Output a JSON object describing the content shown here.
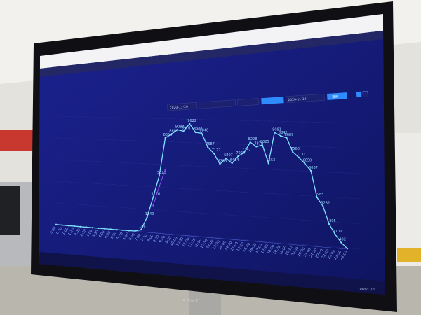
{
  "toolbar": {
    "start_date": "2020-11-20",
    "compare_date": "2020-11-19",
    "query_label": "查询"
  },
  "taskbar": {
    "clock_date": "2020/11/20"
  },
  "monitor_brand": "SONY",
  "colors": {
    "screen_bg": "#151a78",
    "series_main": "#7fe0ff",
    "series_compare": "#9a4dff",
    "button": "#2f8cff"
  },
  "chart_data": {
    "type": "line",
    "x": [
      "0:00",
      "0:30",
      "1:00",
      "1:30",
      "2:00",
      "2:30",
      "3:00",
      "3:30",
      "4:00",
      "4:30",
      "5:00",
      "5:30",
      "6:00",
      "6:30",
      "7:00",
      "7:30",
      "8:00",
      "8:30",
      "9:00",
      "9:30",
      "10:00",
      "10:30",
      "11:00",
      "11:30",
      "12:00",
      "12:30",
      "13:00",
      "13:30",
      "14:00",
      "14:30",
      "15:00",
      "15:30",
      "16:00",
      "16:30",
      "17:00",
      "17:30",
      "18:00",
      "18:30",
      "19:00",
      "19:30",
      "20:00",
      "20:30",
      "21:00",
      "21:30",
      "22:00",
      "22:30",
      "23:00",
      "23:30",
      "24:00"
    ],
    "series": [
      {
        "values": [
          15,
          12,
          10,
          9,
          8,
          7,
          7,
          6,
          6,
          7,
          9,
          12,
          18,
          30,
          186,
          1340,
          3126,
          5020,
          8354,
          8683,
          9084,
          8976,
          9622,
          8902,
          8846,
          7687,
          7177,
          6286,
          6807,
          6414,
          7024,
          7347,
          8228,
          7879,
          8025,
          6553,
          9091,
          8842,
          8689,
          7560,
          7131,
          6650,
          6087,
          3965,
          3282,
          1895,
          1100,
          482,
          43
        ]
      },
      {
        "values": [
          null,
          null,
          null,
          null,
          null,
          null,
          null,
          null,
          null,
          null,
          null,
          null,
          null,
          null,
          null,
          null,
          2400,
          4100,
          5600,
          null,
          null,
          null,
          null,
          null,
          null,
          null,
          null,
          null,
          null,
          null,
          null,
          null,
          null,
          null,
          null,
          null,
          null,
          null,
          null,
          null,
          null,
          null,
          null,
          null,
          null,
          null,
          null,
          null,
          null
        ]
      }
    ],
    "ylim": [
      0,
      10000
    ],
    "grid": true
  }
}
